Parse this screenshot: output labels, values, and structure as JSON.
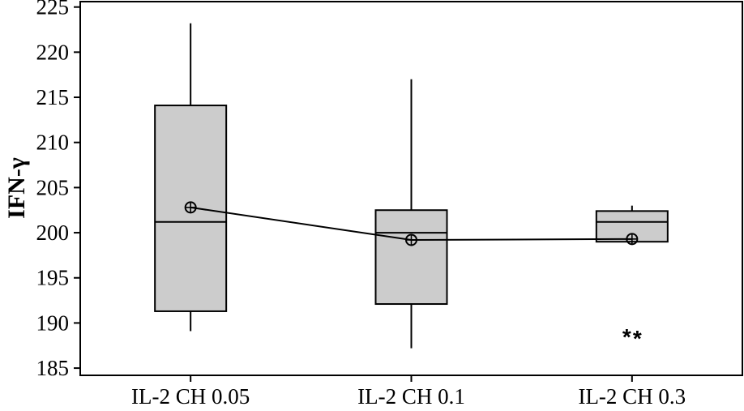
{
  "chart_data": {
    "type": "box",
    "title": "",
    "xlabel": "",
    "ylabel": "IFN-γ",
    "ylim": [
      184.2,
      225.6
    ],
    "yticks": [
      185,
      190,
      195,
      200,
      205,
      210,
      215,
      220,
      225
    ],
    "grid": false,
    "categories": [
      "IL-2 CH 0.05",
      "IL-2 CH 0.1",
      "IL-2 CH 0.3"
    ],
    "boxes": [
      {
        "category": "IL-2 CH 0.05",
        "whisker_low": 189.1,
        "q1": 191.3,
        "median": 201.2,
        "q3": 214.1,
        "whisker_high": 223.2,
        "mean": 202.8,
        "outliers": []
      },
      {
        "category": "IL-2 CH 0.1",
        "whisker_low": 187.2,
        "q1": 192.1,
        "median": 200.0,
        "q3": 202.5,
        "whisker_high": 217.0,
        "mean": 199.2,
        "outliers": []
      },
      {
        "category": "IL-2 CH 0.3",
        "whisker_low": 199.0,
        "q1": 199.0,
        "median": 201.2,
        "q3": 202.4,
        "whisker_high": 203.0,
        "mean": 199.3,
        "outliers": [
          188.8,
          188.6
        ],
        "outlier_symbol": "*"
      }
    ],
    "mean_connect_line": true,
    "colors": {
      "box_fill": "#cccccc",
      "stroke": "#000000"
    }
  }
}
